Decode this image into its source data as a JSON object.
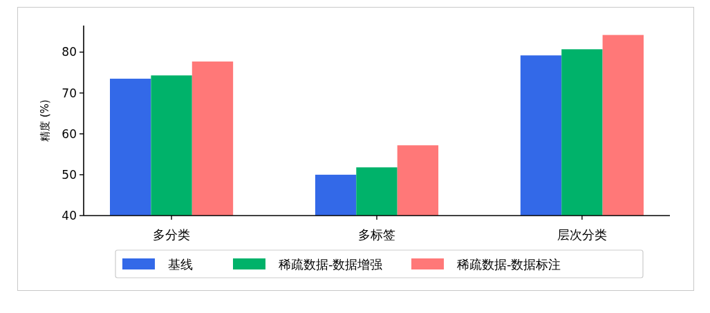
{
  "chart_data": {
    "type": "bar",
    "ylabel": "精度 (%)",
    "categories": [
      "多分类",
      "多标签",
      "层次分类"
    ],
    "series": [
      {
        "name": "基线",
        "color": "#3369e8",
        "values": [
          73.5,
          50.0,
          79.2
        ]
      },
      {
        "name": "稀疏数据-数据增强",
        "color": "#00b26a",
        "values": [
          74.3,
          51.8,
          80.7
        ]
      },
      {
        "name": "稀疏数据-数据标注",
        "color": "#ff7878",
        "values": [
          77.7,
          57.2,
          84.2
        ]
      }
    ],
    "ylim": [
      40,
      86.5
    ],
    "yticks": [
      40,
      50,
      60,
      70,
      80
    ],
    "legend": "bottom"
  }
}
